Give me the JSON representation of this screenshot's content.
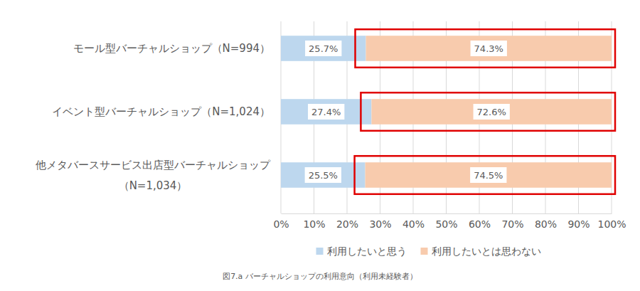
{
  "chart_data": {
    "type": "bar",
    "orientation": "horizontal",
    "stacked": true,
    "title": "図7.a バーチャルショップの利用意向（利用未経験者）",
    "categories": [
      "モール型バーチャルショップ（N=994）",
      "イベント型バーチャルショップ（N=1,024）",
      "他メタバースサービス出店型バーチャルショップ\n（N=1,034）"
    ],
    "series": [
      {
        "name": "利用したいと思う",
        "color": "#bdd7ee",
        "values": [
          25.7,
          27.4,
          25.5
        ],
        "value_labels": [
          "25.7%",
          "27.4%",
          "25.5%"
        ]
      },
      {
        "name": "利用したいとは思わない",
        "color": "#f8cbad",
        "values": [
          74.3,
          72.6,
          74.5
        ],
        "value_labels": [
          "74.3%",
          "72.6%",
          "74.5%"
        ]
      }
    ],
    "xlim": [
      0,
      100
    ],
    "xticks": [
      {
        "value": 0,
        "label": "0%"
      },
      {
        "value": 10,
        "label": "10%"
      },
      {
        "value": 20,
        "label": "20%"
      },
      {
        "value": 30,
        "label": "30%"
      },
      {
        "value": 40,
        "label": "40%"
      },
      {
        "value": 50,
        "label": "50%"
      },
      {
        "value": 60,
        "label": "60%"
      },
      {
        "value": 70,
        "label": "70%"
      },
      {
        "value": 80,
        "label": "80%"
      },
      {
        "value": 90,
        "label": "90%"
      },
      {
        "value": 100,
        "label": "100%"
      }
    ],
    "grid": true,
    "legend": "bottom",
    "data_labels": true
  }
}
